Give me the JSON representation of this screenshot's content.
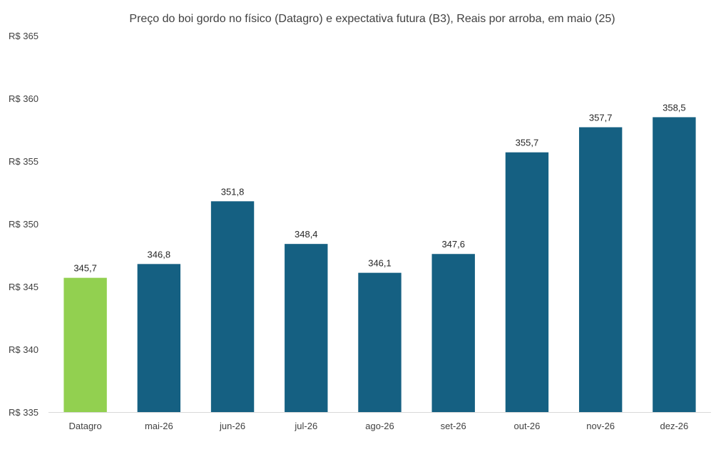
{
  "chart_data": {
    "type": "bar",
    "title": "Preço do boi gordo no físico (Datagro)  e expectativa futura (B3), Reais por arroba, em maio (25)",
    "xlabel": "",
    "ylabel": "",
    "ylim": [
      335,
      365
    ],
    "yticks": [
      335,
      340,
      345,
      350,
      355,
      360,
      365
    ],
    "ytick_prefix": "R$ ",
    "grid": false,
    "legend": "none",
    "categories": [
      "Datagro",
      "mai-26",
      "jun-26",
      "jul-26",
      "ago-26",
      "set-26",
      "out-26",
      "nov-26",
      "dez-26"
    ],
    "values": [
      345.7,
      346.8,
      351.8,
      348.4,
      346.1,
      347.6,
      355.7,
      357.7,
      358.5
    ],
    "value_labels": [
      "345,7",
      "346,8",
      "351,8",
      "348,4",
      "346,1",
      "347,6",
      "355,7",
      "357,7",
      "358,5"
    ],
    "colors": {
      "highlight": "#92d050",
      "default": "#156082",
      "axis": "#d9d9d9"
    },
    "highlight_index": 0
  }
}
